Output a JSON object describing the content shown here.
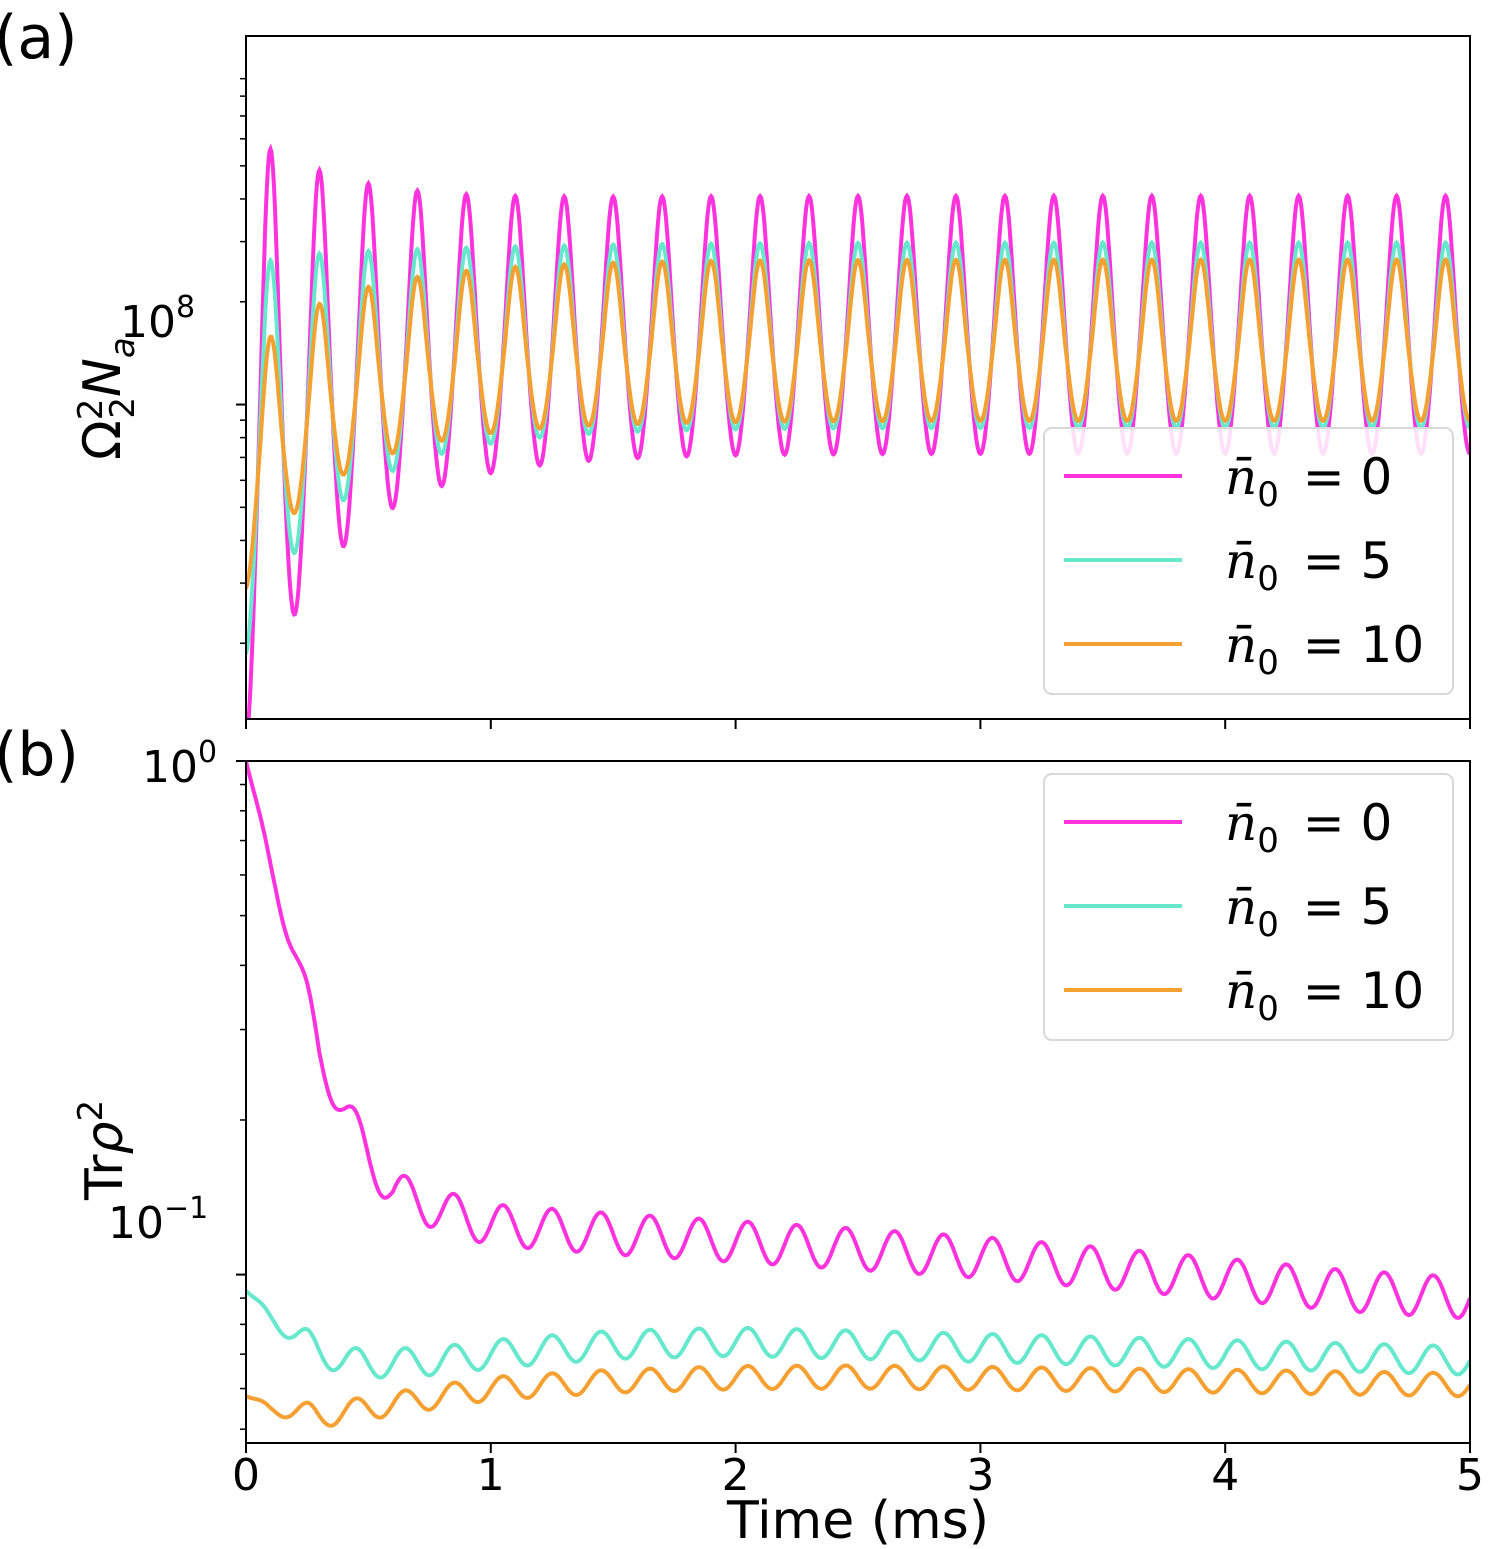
{
  "chart_data": [
    {
      "panel": "(a)",
      "type": "line",
      "ylabel": "Ω₂²N_a",
      "ylabel_parts": {
        "omega": "Ω",
        "sup": "2",
        "sub": "2",
        "n": "N",
        "n_sub": "a"
      },
      "xlabel": "",
      "yscale": "log",
      "xlim": [
        0,
        5
      ],
      "ylim": [
        12000000.0,
        1200000000.0
      ],
      "ytick_label": {
        "base": "10",
        "exp": "8"
      },
      "legend_loc": "lower-right",
      "series": [
        {
          "name": "n̄0 = 0",
          "label_value": "0",
          "color": "#ff33dd",
          "base": 150000000.0,
          "amp_start": 1.5,
          "amp_end": 0.64,
          "period": 0.2,
          "phase": 0.1,
          "ramp_tau": 0.35
        },
        {
          "name": "n̄0 = 5",
          "label_value": "5",
          "color": "#66e8cc",
          "base": 145000000.0,
          "amp_start": 0.95,
          "amp_end": 0.46,
          "period": 0.2,
          "phase": 0.1,
          "ramp_tau": 0.35
        },
        {
          "name": "n̄0 = 10",
          "label_value": "10",
          "color": "#f5a030",
          "base": 142000000.0,
          "amp_start": 0.55,
          "amp_end": 0.4,
          "period": 0.2,
          "phase": 0.1,
          "ramp_tau": 0.35
        }
      ]
    },
    {
      "panel": "(b)",
      "type": "line",
      "ylabel": "Trρ²",
      "ylabel_parts": {
        "tr": "Tr",
        "rho": "ρ",
        "sup": "2"
      },
      "xlabel": "Time (ms)",
      "yscale": "log",
      "xlim": [
        0,
        5
      ],
      "ylim": [
        0.047,
        1.0
      ],
      "xticks": [
        0,
        1,
        2,
        3,
        4,
        5
      ],
      "xtick_labels": [
        "0",
        "1",
        "2",
        "3",
        "4",
        "5"
      ],
      "ytick_labels": [
        {
          "value": 1.0,
          "base": "10",
          "exp": "0"
        },
        {
          "value": 0.1,
          "base": "10",
          "exp": "−1"
        }
      ],
      "legend_loc": "upper-right",
      "series": [
        {
          "name": "n̄0 = 0",
          "label_value": "0",
          "color": "#ff33dd",
          "x": [
            0,
            0.1,
            0.2,
            0.3,
            0.4,
            0.5,
            0.6,
            0.8,
            1.0,
            1.5,
            2.0,
            2.5,
            3.0,
            3.5,
            4.0,
            4.5,
            5.0
          ],
          "y": [
            1.0,
            0.63,
            0.42,
            0.27,
            0.21,
            0.17,
            0.145,
            0.133,
            0.125,
            0.12,
            0.116,
            0.112,
            0.108,
            0.103,
            0.098,
            0.093,
            0.09
          ],
          "osc_amp": 0.08,
          "period": 0.2
        },
        {
          "name": "n̄0 = 5",
          "label_value": "5",
          "color": "#66e8cc",
          "x": [
            0,
            0.1,
            0.2,
            0.3,
            0.4,
            0.5,
            0.8,
            1.0,
            1.5,
            2.0,
            2.5,
            3.0,
            3.5,
            4.0,
            4.5,
            5.0
          ],
          "y": [
            0.093,
            0.083,
            0.076,
            0.071,
            0.068,
            0.067,
            0.068,
            0.07,
            0.073,
            0.074,
            0.073,
            0.072,
            0.071,
            0.07,
            0.069,
            0.068
          ],
          "osc_amp": 0.055,
          "period": 0.2
        },
        {
          "name": "n̄0 = 10",
          "label_value": "10",
          "color": "#f5a030",
          "x": [
            0,
            0.1,
            0.2,
            0.3,
            0.4,
            0.5,
            0.8,
            1.0,
            1.5,
            2.0,
            2.5,
            3.0,
            3.5,
            4.0,
            4.5,
            5.0
          ],
          "y": [
            0.058,
            0.055,
            0.054,
            0.053,
            0.054,
            0.055,
            0.058,
            0.06,
            0.062,
            0.063,
            0.0632,
            0.0628,
            0.0624,
            0.062,
            0.0615,
            0.061
          ],
          "osc_amp": 0.045,
          "period": 0.2
        }
      ]
    }
  ]
}
